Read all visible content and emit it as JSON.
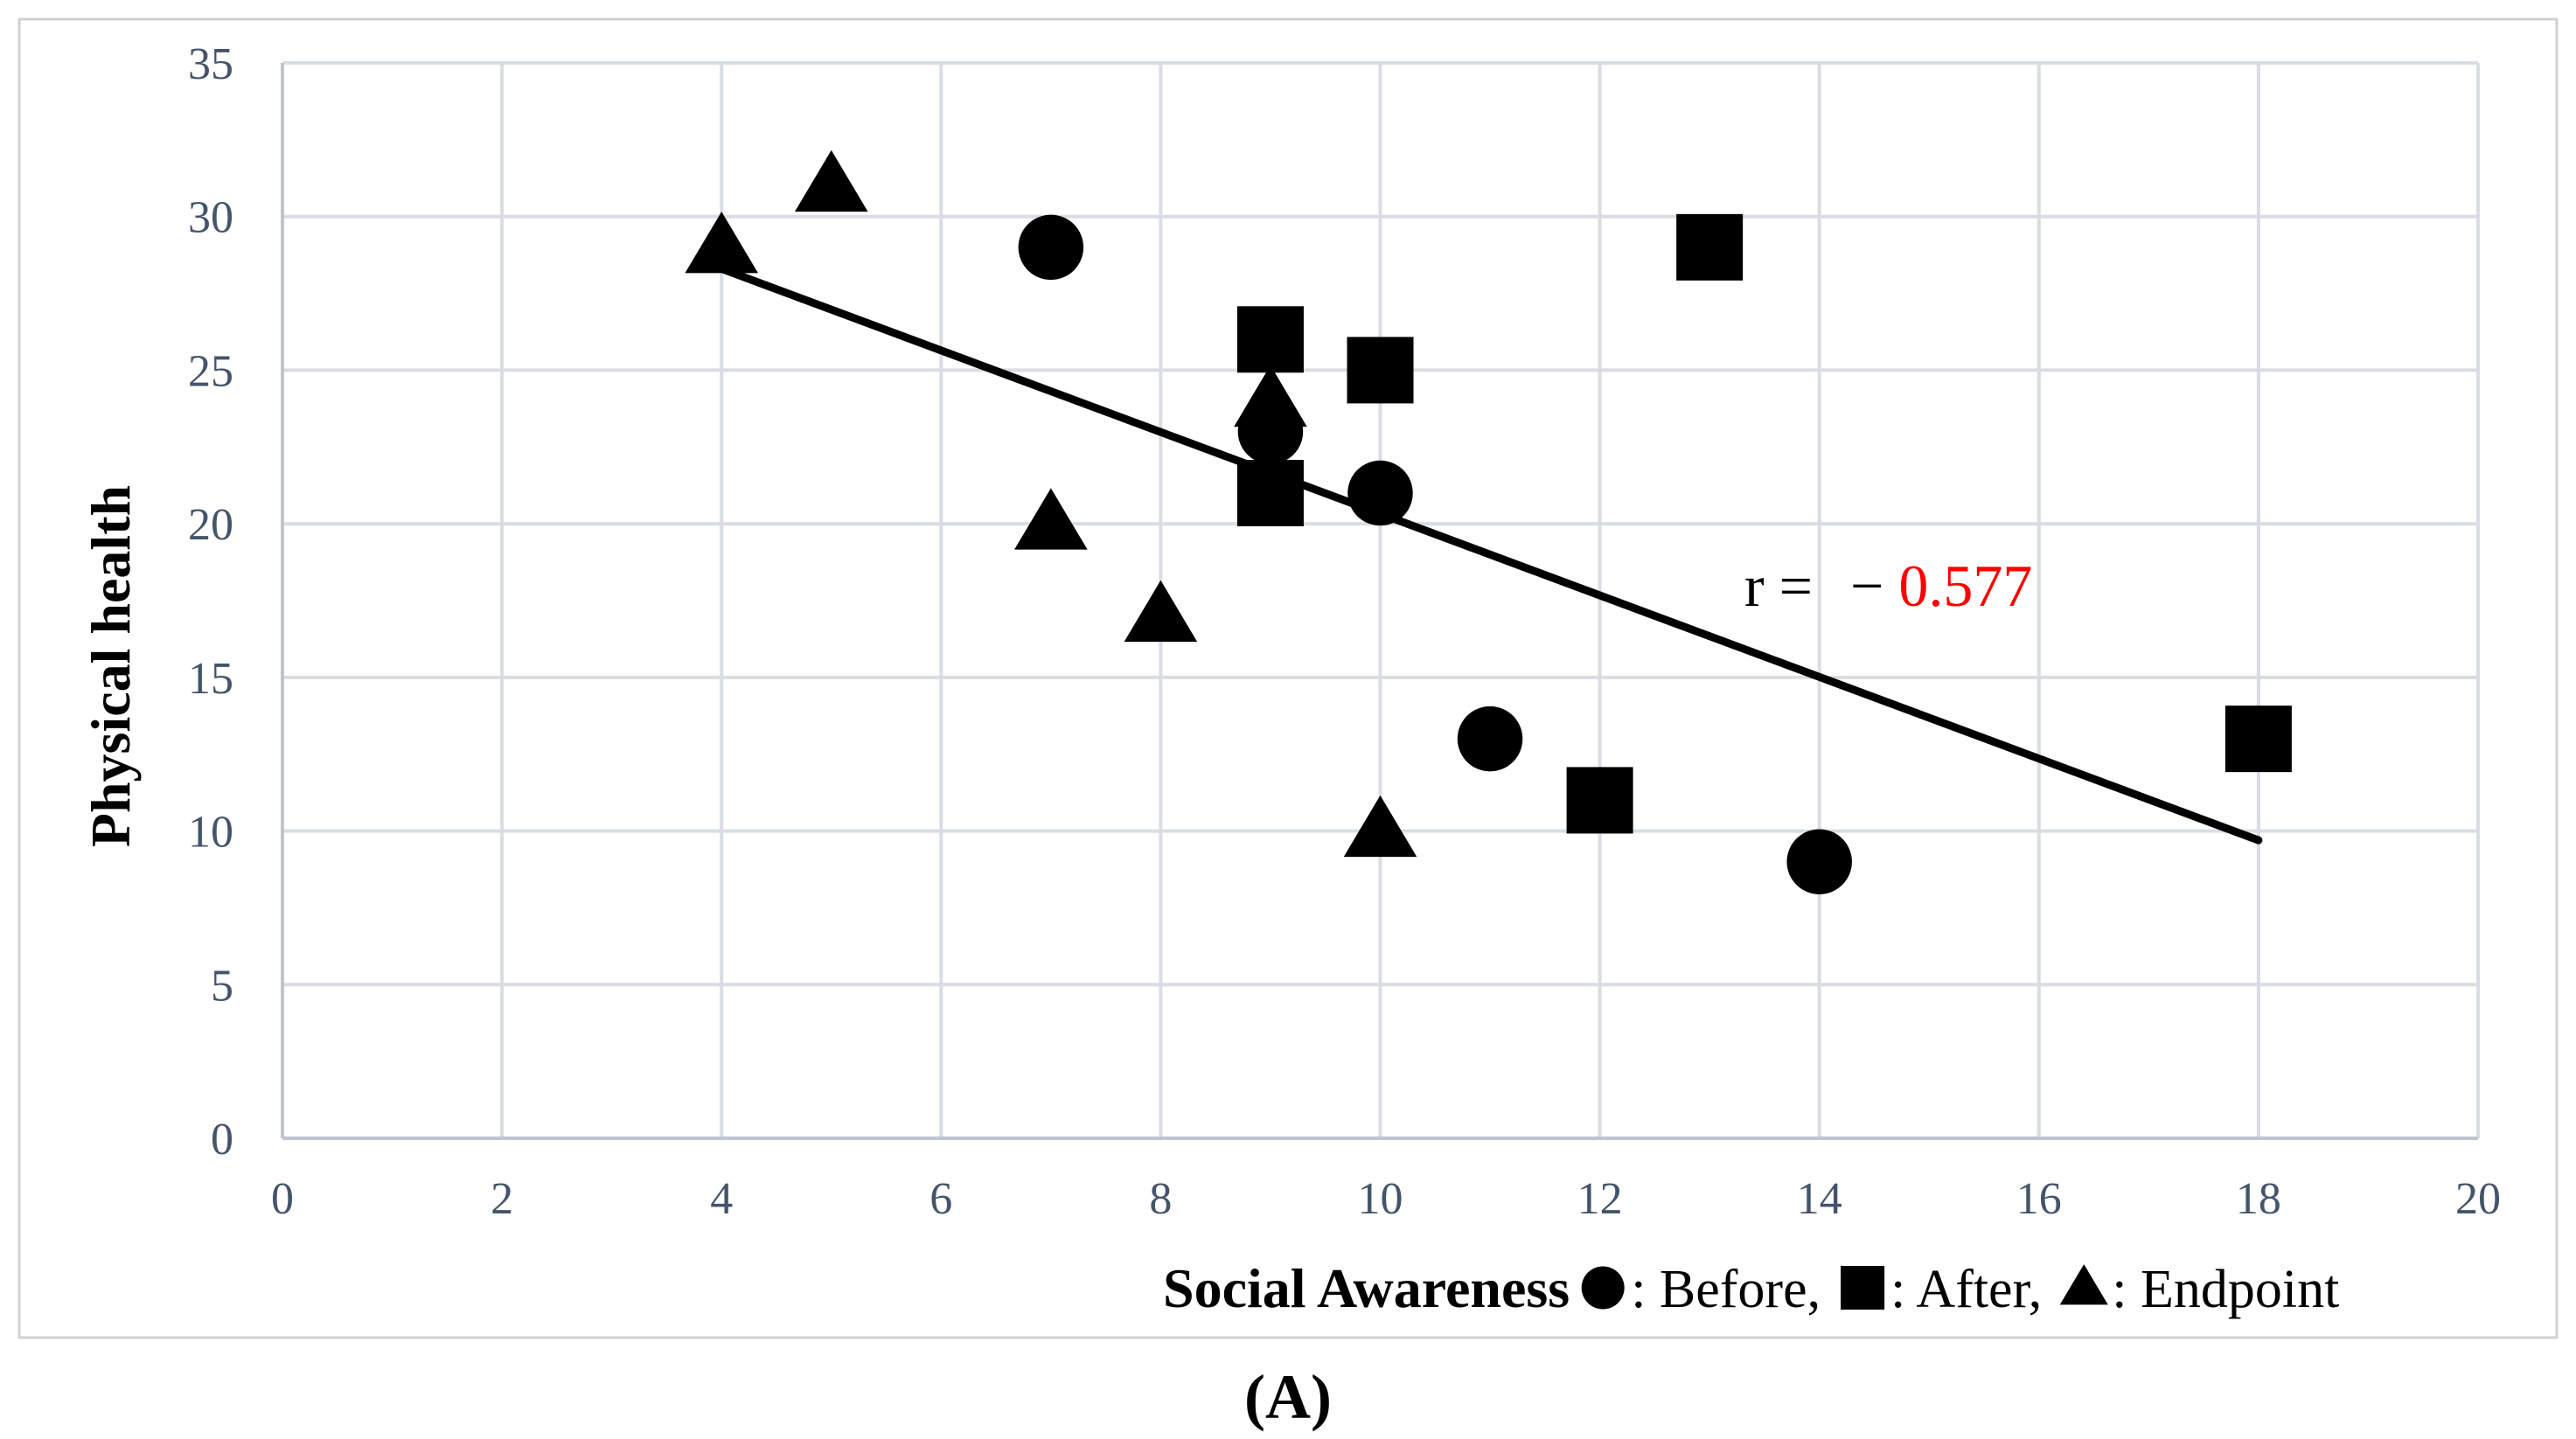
{
  "chart_data": {
    "type": "scatter",
    "xlabel": "Social Awareness",
    "ylabel": "Physical health",
    "xlim": [
      0,
      20
    ],
    "ylim": [
      0,
      35
    ],
    "xticks": [
      0,
      2,
      4,
      6,
      8,
      10,
      12,
      14,
      16,
      18,
      20
    ],
    "yticks": [
      0,
      5,
      10,
      15,
      20,
      25,
      30,
      35
    ],
    "grid": true,
    "series": [
      {
        "name": "Before",
        "marker": "circle",
        "legend_label": ": Before,",
        "points": [
          [
            7,
            29
          ],
          [
            9,
            23
          ],
          [
            10,
            21
          ],
          [
            11,
            13
          ],
          [
            14,
            9
          ]
        ]
      },
      {
        "name": "After",
        "marker": "square",
        "legend_label": ": After,",
        "points": [
          [
            9,
            26
          ],
          [
            9,
            21
          ],
          [
            10,
            25
          ],
          [
            12,
            11
          ],
          [
            13,
            29
          ],
          [
            18,
            13
          ]
        ]
      },
      {
        "name": "Endpoint",
        "marker": "triangle",
        "legend_label": ": Endpoint",
        "points": [
          [
            4,
            29
          ],
          [
            5,
            31
          ],
          [
            7,
            20
          ],
          [
            8,
            17
          ],
          [
            9,
            24
          ],
          [
            10,
            10
          ]
        ]
      }
    ],
    "trendline": {
      "x": [
        4,
        18
      ],
      "y": [
        28.3,
        9.7
      ]
    },
    "annotation": {
      "prefix": "r =",
      "sign": "−",
      "value": "0.577",
      "value_color": "#ff0000"
    },
    "panel_label": "(A)",
    "colors": {
      "grid": "#d9dde3",
      "axis": "#bfc5cf",
      "tick": "#44546a",
      "marker": "#000000",
      "frame": "#d0d0d0"
    }
  }
}
